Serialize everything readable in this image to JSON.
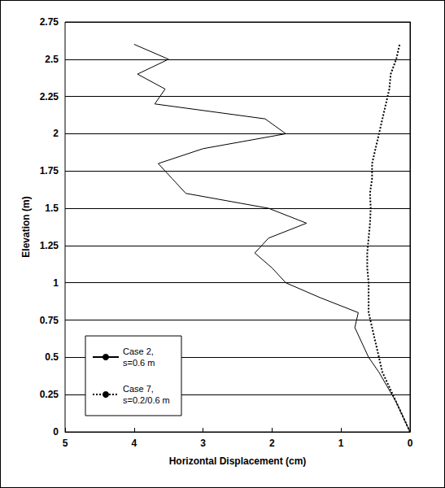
{
  "chart_data": {
    "type": "line",
    "x_label": "Horizontal Displacement (cm)",
    "y_label": "Elevation (m)",
    "xlim": [
      0,
      5
    ],
    "xticks": [
      0,
      1,
      2,
      3,
      4,
      5
    ],
    "ylim": [
      0,
      2.75
    ],
    "yticks": [
      0,
      0.25,
      0.5,
      0.75,
      1,
      1.25,
      1.5,
      1.75,
      2,
      2.25,
      2.5,
      2.75
    ],
    "grid": true,
    "legend": "lower left",
    "series": [
      {
        "name": "Case 2, s=0.6 m",
        "color": "#000000",
        "line_style": "solid",
        "x": [
          0,
          0.2,
          0.45,
          0.6,
          0.7,
          0.8,
          0.75,
          1.3,
          1.8,
          2.0,
          2.25,
          2.05,
          1.5,
          2.05,
          3.25,
          3.45,
          3.65,
          3.0,
          1.8,
          2.1,
          3.7,
          3.55,
          3.95,
          3.5,
          4.0
        ],
        "values": [
          0,
          0.2,
          0.4,
          0.5,
          0.6,
          0.7,
          0.8,
          0.9,
          1.0,
          1.1,
          1.2,
          1.3,
          1.4,
          1.5,
          1.6,
          1.7,
          1.8,
          1.9,
          2.0,
          2.1,
          2.2,
          2.3,
          2.4,
          2.5,
          2.6
        ]
      },
      {
        "name": "Case 7, s=0.2/0.6 m",
        "color": "#000000",
        "line_style": "dotted",
        "x": [
          0,
          0.1,
          0.2,
          0.3,
          0.4,
          0.45,
          0.5,
          0.55,
          0.6,
          0.6,
          0.6,
          0.62,
          0.62,
          0.6,
          0.58,
          0.57,
          0.58,
          0.55,
          0.55,
          0.5,
          0.45,
          0.4,
          0.35,
          0.3,
          0.28,
          0.2,
          0.15
        ],
        "values": [
          0,
          0.1,
          0.2,
          0.3,
          0.4,
          0.5,
          0.6,
          0.7,
          0.8,
          0.9,
          1.0,
          1.1,
          1.2,
          1.3,
          1.4,
          1.5,
          1.6,
          1.7,
          1.8,
          1.9,
          2.0,
          2.1,
          2.2,
          2.3,
          2.4,
          2.5,
          2.6
        ]
      }
    ]
  }
}
